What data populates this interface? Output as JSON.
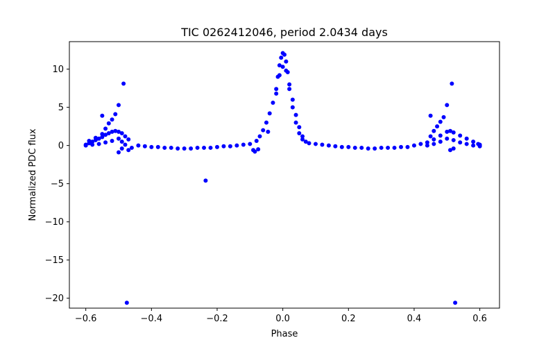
{
  "chart_data": {
    "type": "scatter",
    "title": "TIC 0262412046, period 2.0434 days",
    "xlabel": "Phase",
    "ylabel": "Normalized PDC flux",
    "xlim": [
      -0.65,
      0.66
    ],
    "ylim": [
      -21.3,
      13.6
    ],
    "xticks": [
      -0.6,
      -0.4,
      -0.2,
      0.0,
      0.2,
      0.4,
      0.6
    ],
    "xtick_labels": [
      "−0.6",
      "−0.4",
      "−0.2",
      "0.0",
      "0.2",
      "0.4",
      "0.6"
    ],
    "yticks": [
      10,
      5,
      0,
      -5,
      -10,
      -15,
      -20
    ],
    "ytick_labels": [
      "10",
      "5",
      "0",
      "−5",
      "−10",
      "−15",
      "−20"
    ],
    "grid": false,
    "marker_color": "#0000ff",
    "series": [
      {
        "name": "flux",
        "points": [
          [
            -0.6,
            0.1
          ],
          [
            -0.59,
            0.3
          ],
          [
            -0.58,
            0.5
          ],
          [
            -0.57,
            0.7
          ],
          [
            -0.56,
            0.9
          ],
          [
            -0.55,
            1.1
          ],
          [
            -0.54,
            1.4
          ],
          [
            -0.53,
            1.6
          ],
          [
            -0.52,
            1.8
          ],
          [
            -0.51,
            1.9
          ],
          [
            -0.5,
            1.8
          ],
          [
            -0.49,
            1.6
          ],
          [
            -0.48,
            1.2
          ],
          [
            -0.47,
            0.8
          ],
          [
            -0.6,
            0.0
          ],
          [
            -0.58,
            0.1
          ],
          [
            -0.56,
            0.2
          ],
          [
            -0.54,
            0.4
          ],
          [
            -0.52,
            0.6
          ],
          [
            -0.5,
            0.9
          ],
          [
            -0.49,
            0.5
          ],
          [
            -0.48,
            0.1
          ],
          [
            -0.47,
            -0.6
          ],
          [
            -0.59,
            0.6
          ],
          [
            -0.57,
            1.0
          ],
          [
            -0.55,
            1.5
          ],
          [
            -0.54,
            2.2
          ],
          [
            -0.53,
            2.9
          ],
          [
            -0.52,
            3.4
          ],
          [
            -0.51,
            4.1
          ],
          [
            -0.5,
            5.3
          ],
          [
            -0.485,
            8.1
          ],
          [
            -0.55,
            3.9
          ],
          [
            -0.5,
            -0.9
          ],
          [
            -0.49,
            -0.4
          ],
          [
            -0.475,
            -20.6
          ],
          [
            -0.46,
            -0.3
          ],
          [
            -0.44,
            0.0
          ],
          [
            -0.42,
            -0.1
          ],
          [
            -0.4,
            -0.2
          ],
          [
            -0.38,
            -0.2
          ],
          [
            -0.36,
            -0.3
          ],
          [
            -0.34,
            -0.3
          ],
          [
            -0.32,
            -0.4
          ],
          [
            -0.3,
            -0.4
          ],
          [
            -0.28,
            -0.4
          ],
          [
            -0.26,
            -0.3
          ],
          [
            -0.24,
            -0.3
          ],
          [
            -0.22,
            -0.3
          ],
          [
            -0.2,
            -0.2
          ],
          [
            -0.18,
            -0.1
          ],
          [
            -0.16,
            -0.1
          ],
          [
            -0.14,
            0.0
          ],
          [
            -0.12,
            0.1
          ],
          [
            -0.1,
            0.2
          ],
          [
            -0.09,
            -0.6
          ],
          [
            -0.085,
            -0.8
          ],
          [
            -0.075,
            -0.5
          ],
          [
            -0.235,
            -4.6
          ],
          [
            -0.08,
            0.6
          ],
          [
            -0.07,
            1.2
          ],
          [
            -0.06,
            2.0
          ],
          [
            -0.05,
            3.0
          ],
          [
            -0.045,
            1.8
          ],
          [
            -0.04,
            4.2
          ],
          [
            -0.03,
            5.6
          ],
          [
            -0.02,
            7.4
          ],
          [
            -0.015,
            9.0
          ],
          [
            -0.01,
            10.5
          ],
          [
            -0.005,
            11.5
          ],
          [
            0.0,
            12.1
          ],
          [
            0.005,
            11.9
          ],
          [
            0.01,
            11.0
          ],
          [
            0.015,
            9.6
          ],
          [
            0.02,
            8.0
          ],
          [
            0.03,
            6.0
          ],
          [
            0.04,
            4.0
          ],
          [
            0.05,
            2.4
          ],
          [
            0.06,
            1.2
          ],
          [
            0.07,
            0.5
          ],
          [
            -0.02,
            6.8
          ],
          [
            -0.01,
            9.2
          ],
          [
            0.0,
            10.3
          ],
          [
            0.01,
            9.8
          ],
          [
            0.02,
            7.4
          ],
          [
            0.03,
            5.0
          ],
          [
            0.04,
            3.0
          ],
          [
            0.05,
            1.6
          ],
          [
            0.06,
            0.8
          ],
          [
            0.08,
            0.3
          ],
          [
            0.1,
            0.2
          ],
          [
            0.12,
            0.1
          ],
          [
            0.14,
            0.0
          ],
          [
            0.16,
            -0.1
          ],
          [
            0.18,
            -0.2
          ],
          [
            0.2,
            -0.2
          ],
          [
            0.22,
            -0.3
          ],
          [
            0.24,
            -0.3
          ],
          [
            0.26,
            -0.4
          ],
          [
            0.28,
            -0.4
          ],
          [
            0.3,
            -0.3
          ],
          [
            0.32,
            -0.3
          ],
          [
            0.34,
            -0.3
          ],
          [
            0.36,
            -0.2
          ],
          [
            0.38,
            -0.2
          ],
          [
            0.4,
            0.0
          ],
          [
            0.42,
            0.2
          ],
          [
            0.44,
            0.4
          ],
          [
            0.46,
            0.8
          ],
          [
            0.48,
            1.3
          ],
          [
            0.5,
            1.8
          ],
          [
            0.51,
            1.9
          ],
          [
            0.52,
            1.7
          ],
          [
            0.54,
            1.3
          ],
          [
            0.56,
            0.9
          ],
          [
            0.58,
            0.5
          ],
          [
            0.6,
            0.1
          ],
          [
            0.44,
            0.0
          ],
          [
            0.46,
            0.2
          ],
          [
            0.48,
            0.5
          ],
          [
            0.5,
            0.9
          ],
          [
            0.52,
            0.7
          ],
          [
            0.54,
            0.4
          ],
          [
            0.56,
            0.2
          ],
          [
            0.58,
            0.0
          ],
          [
            0.6,
            -0.1
          ],
          [
            0.45,
            1.2
          ],
          [
            0.46,
            1.9
          ],
          [
            0.47,
            2.5
          ],
          [
            0.48,
            3.1
          ],
          [
            0.49,
            3.7
          ],
          [
            0.5,
            5.3
          ],
          [
            0.515,
            8.1
          ],
          [
            0.45,
            3.9
          ],
          [
            0.51,
            -0.6
          ],
          [
            0.52,
            -0.4
          ],
          [
            0.525,
            -20.6
          ],
          [
            0.595,
            0.2
          ],
          [
            0.6,
            0.0
          ]
        ]
      }
    ]
  }
}
